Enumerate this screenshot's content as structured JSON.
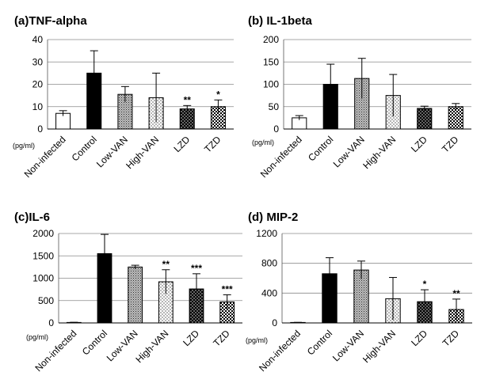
{
  "chart_data": [
    {
      "type": "bar",
      "title": "(a)TNF-alpha",
      "unit_label": "(pg/ml)",
      "categories": [
        "Non-infected",
        "Control",
        "Low-VAN",
        "High-VAN",
        "LZD",
        "TZD"
      ],
      "values": [
        7,
        25,
        15.5,
        14,
        9,
        10
      ],
      "errors": [
        1.2,
        10,
        3.5,
        11,
        1.5,
        3
      ],
      "significance": [
        "",
        "",
        "",
        "",
        "**",
        "*"
      ],
      "bar_styles": [
        "white",
        "black",
        "crosshatch",
        "dots-light",
        "dots-black",
        "checker"
      ],
      "ylim": [
        0,
        40
      ],
      "yticks": [
        "0",
        "10",
        "20",
        "30",
        "40"
      ],
      "grid": true
    },
    {
      "type": "bar",
      "title": "(b) IL-1beta",
      "unit_label": "(pg/ml)",
      "categories": [
        "Non-infected",
        "Control",
        "Low-VAN",
        "High-VAN",
        "LZD",
        "TZD"
      ],
      "values": [
        25,
        100,
        113,
        75,
        46,
        50
      ],
      "errors": [
        5,
        45,
        45,
        47,
        5,
        7
      ],
      "significance": [
        "",
        "",
        "",
        "",
        "",
        ""
      ],
      "bar_styles": [
        "white",
        "black",
        "crosshatch",
        "dots-light",
        "dots-black",
        "checker"
      ],
      "ylim": [
        0,
        200
      ],
      "yticks": [
        "0",
        "50",
        "100",
        "150",
        "200"
      ],
      "grid": true
    },
    {
      "type": "bar",
      "title": "(c)IL-6",
      "unit_label": "(pg/ml)",
      "categories": [
        "Non-infected",
        "Control",
        "Low-VAN",
        "High-VAN",
        "LZD",
        "TZD"
      ],
      "values": [
        10,
        1550,
        1250,
        920,
        760,
        470
      ],
      "errors": [
        5,
        430,
        40,
        270,
        340,
        160
      ],
      "significance": [
        "",
        "",
        "",
        "**",
        "***",
        "***"
      ],
      "bar_styles": [
        "white",
        "black",
        "crosshatch",
        "dots-light",
        "dots-black",
        "checker"
      ],
      "ylim": [
        0,
        2000
      ],
      "yticks": [
        "0",
        "500",
        "1000",
        "1500",
        "2000"
      ],
      "grid": true
    },
    {
      "type": "bar",
      "title": "(d) MIP-2",
      "unit_label": "(pg/ml)",
      "categories": [
        "Non-infected",
        "Control",
        "Low-VAN",
        "High-VAN",
        "LZD",
        "TZD"
      ],
      "values": [
        5,
        660,
        710,
        325,
        285,
        180
      ],
      "errors": [
        3,
        215,
        120,
        285,
        160,
        140
      ],
      "significance": [
        "",
        "",
        "",
        "",
        "*",
        "**"
      ],
      "bar_styles": [
        "white",
        "black",
        "crosshatch",
        "dots-light",
        "dots-black",
        "checker"
      ],
      "ylim": [
        0,
        1200
      ],
      "yticks": [
        "0",
        "400",
        "800",
        "1200"
      ],
      "grid": true
    }
  ]
}
